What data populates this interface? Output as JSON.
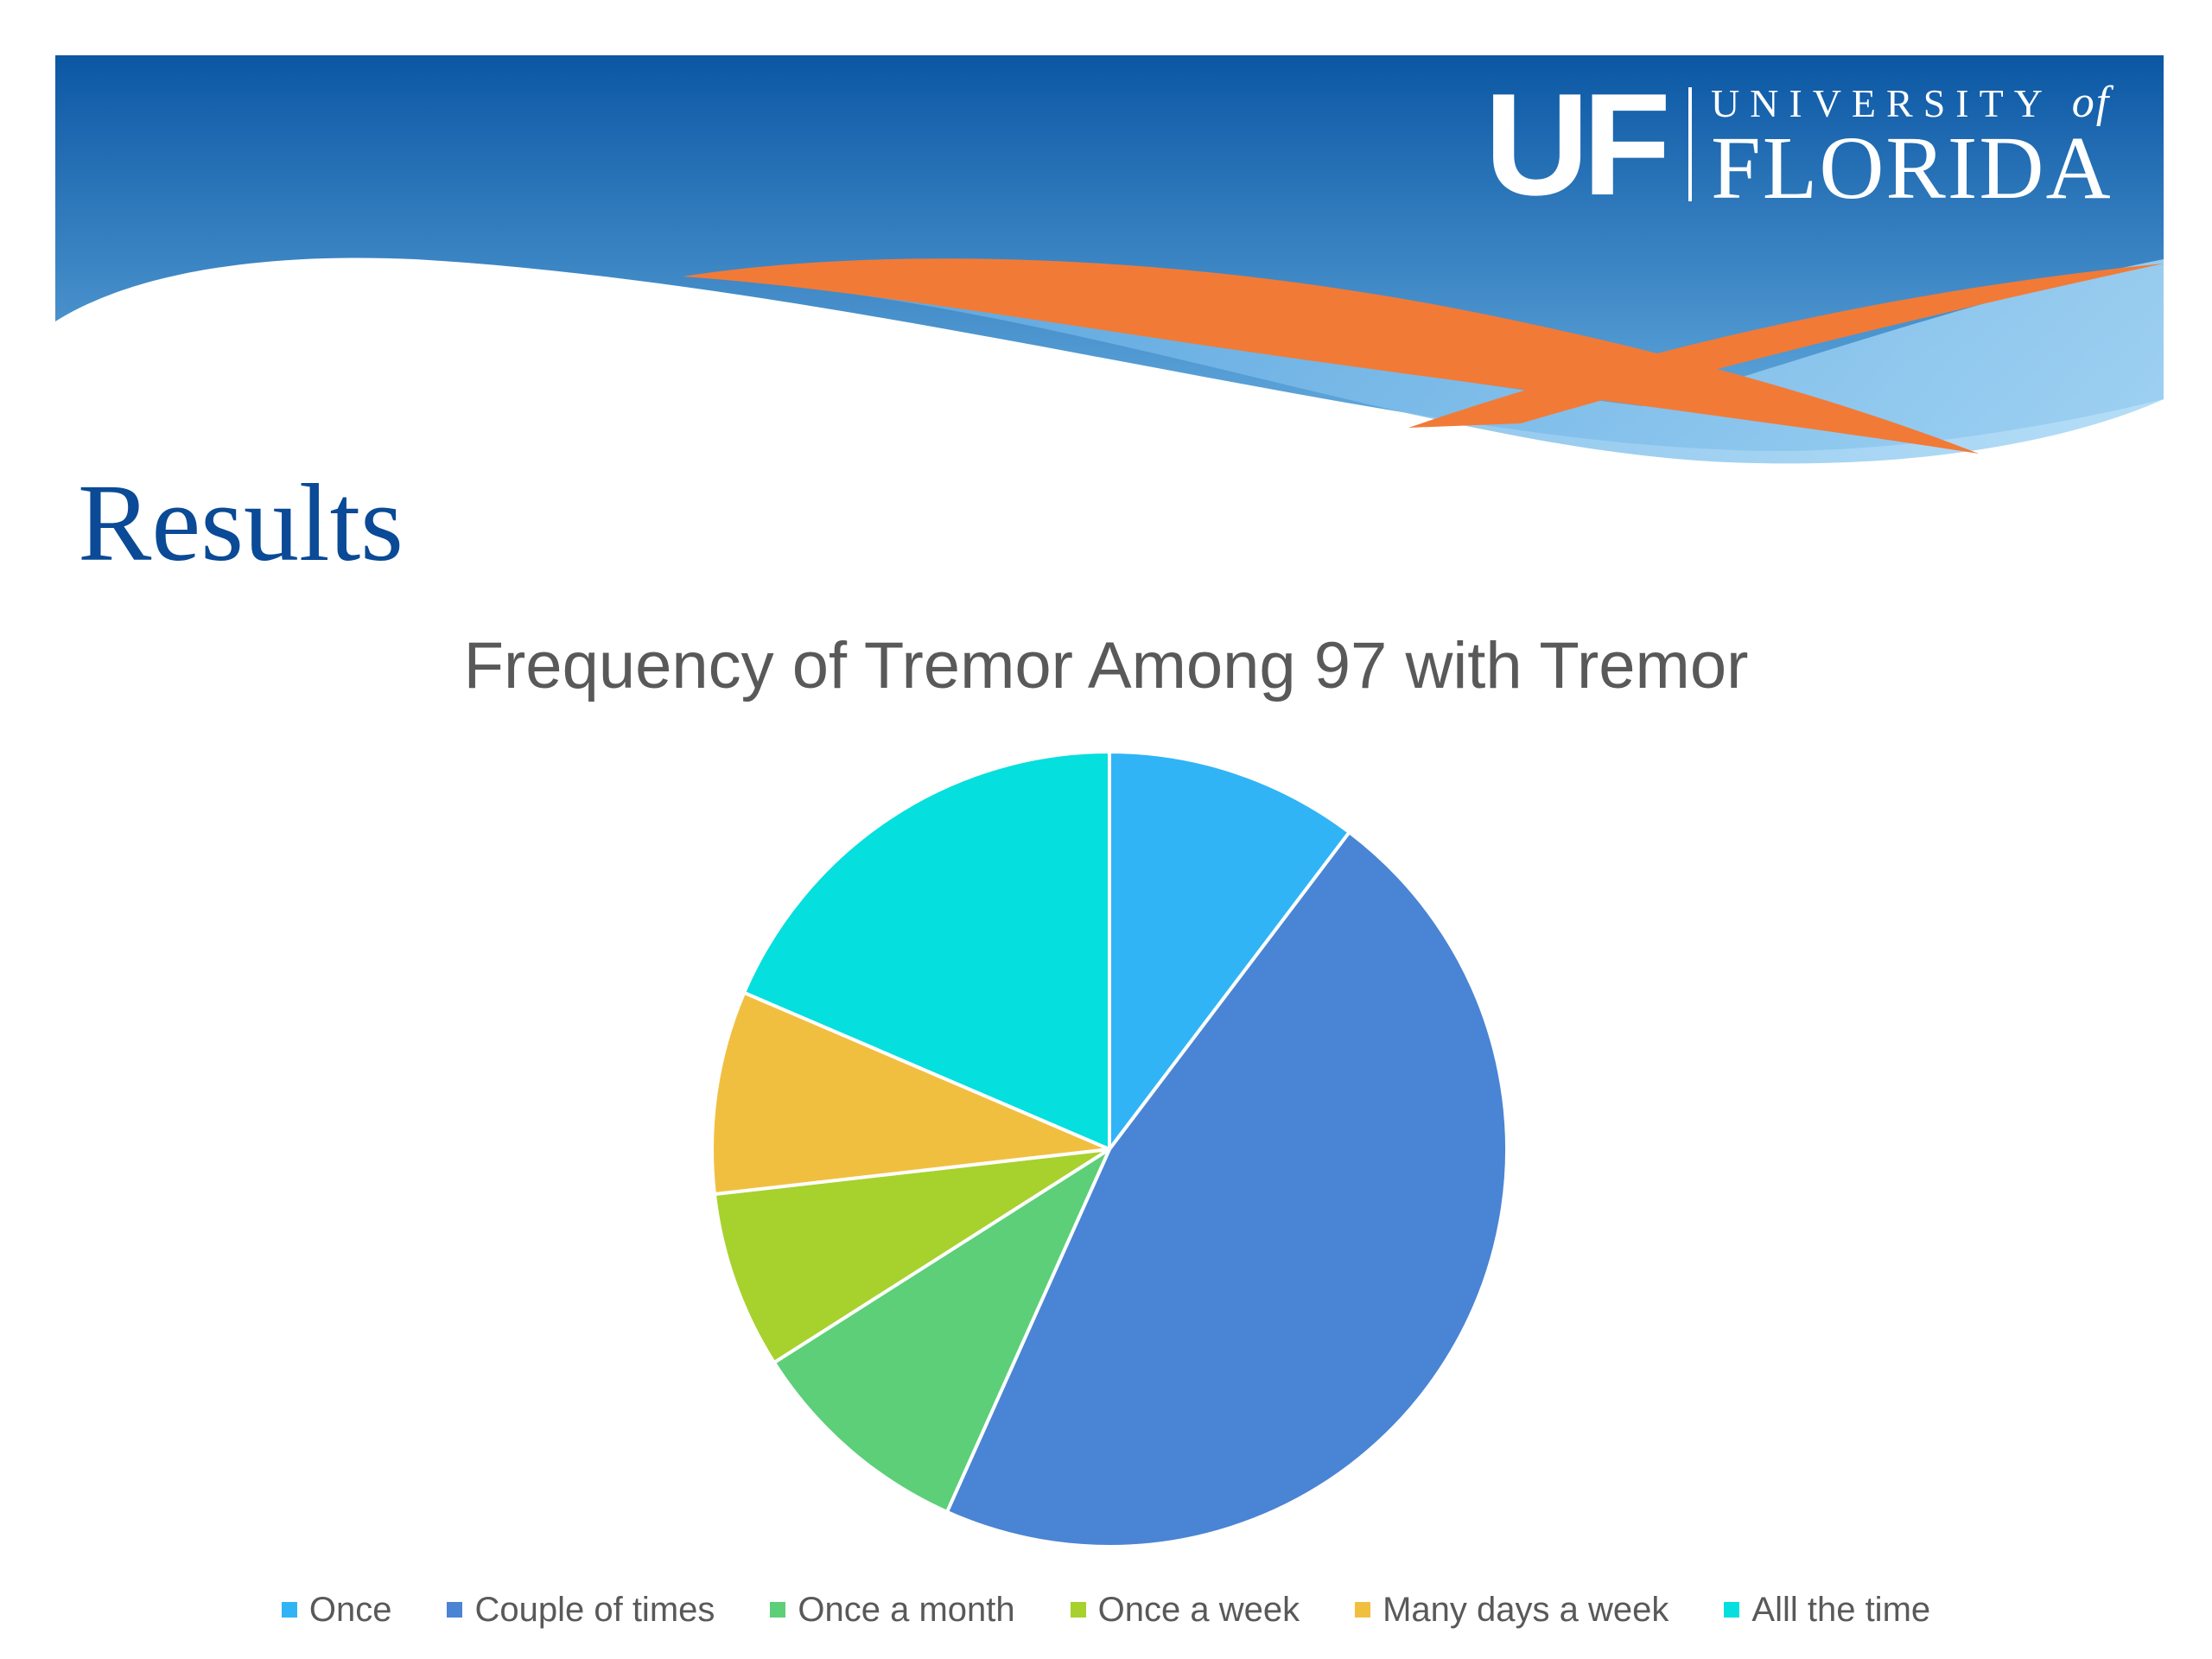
{
  "slide": {
    "title": "Results",
    "logo": {
      "mark": "UF",
      "line1": "UNIVERSITY",
      "line1_suffix": "of",
      "line2": "FLORIDA"
    },
    "colors": {
      "banner_top": "#0b57a4",
      "banner_bottom": "#67aee0",
      "orange": "#f27a37",
      "title": "#0a4a96"
    }
  },
  "chart_data": {
    "type": "pie",
    "title": "Frequency of Tremor Among 97 with Tremor",
    "start_angle_deg": 0,
    "direction": "clockwise",
    "legend_position": "bottom",
    "categories": [
      "Once",
      "Couple of times",
      "Once a month",
      "Once a week",
      "Many days a week",
      "Alll the time"
    ],
    "values": [
      10,
      45,
      9,
      7,
      8,
      18
    ],
    "colors": [
      "#30b4f6",
      "#4a84d4",
      "#5ccf78",
      "#a7d12d",
      "#f1bf40",
      "#05dfdd"
    ]
  }
}
